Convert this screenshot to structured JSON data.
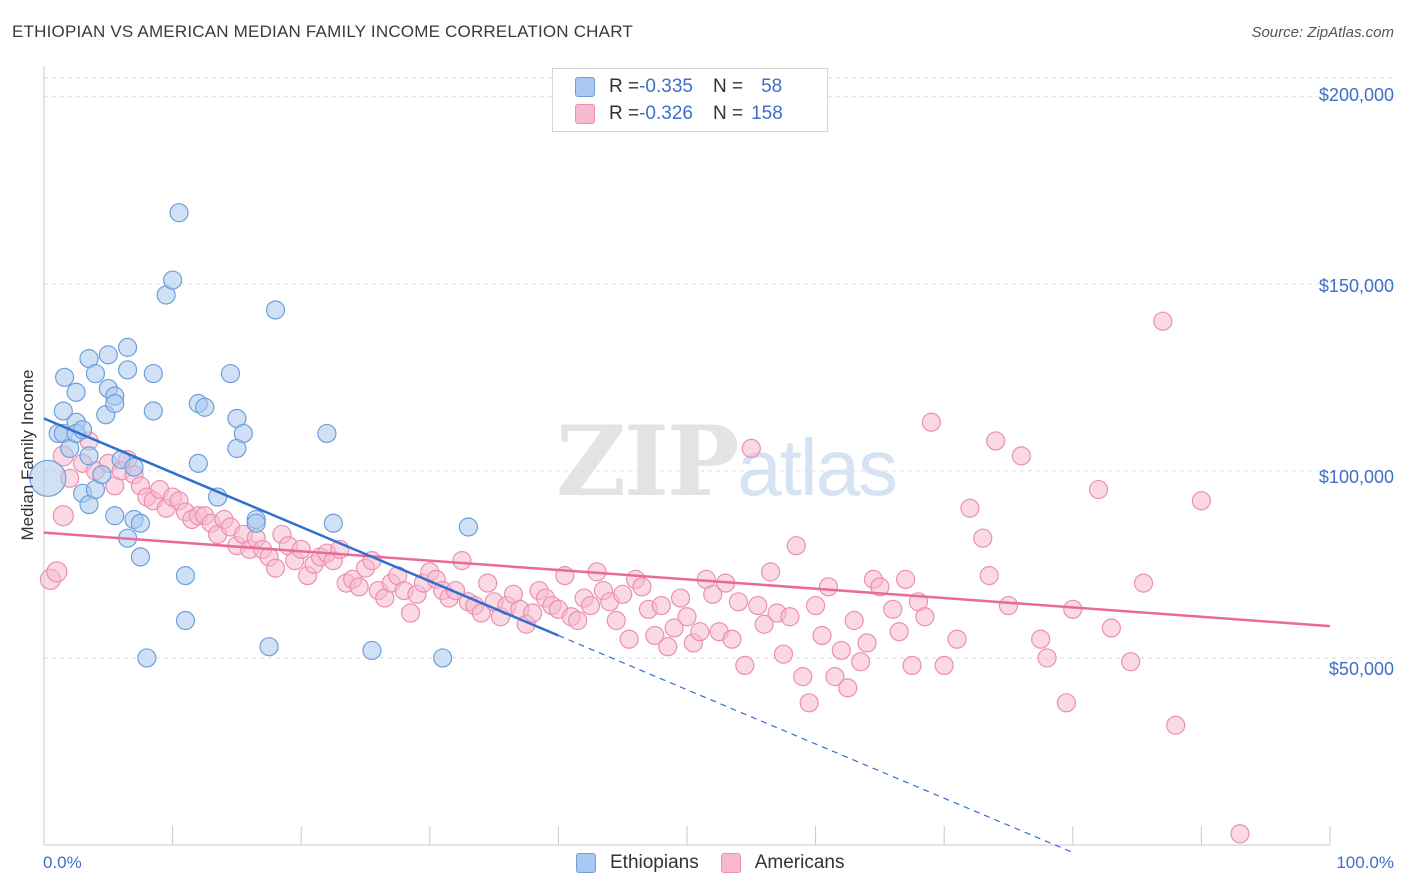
{
  "title": "ETHIOPIAN VS AMERICAN MEDIAN FAMILY INCOME CORRELATION CHART",
  "source": "Source: ZipAtlas.com",
  "watermark": {
    "zip": "ZIP",
    "atlas": "atlas"
  },
  "legend": {
    "rows": [
      {
        "r_label": "R = ",
        "r_value": "-0.335",
        "n_label": "N = ",
        "n_value": "58"
      },
      {
        "r_label": "R = ",
        "r_value": "-0.326",
        "n_label": "N = ",
        "n_value": "158"
      }
    ]
  },
  "bottom_legend": {
    "ethiopians": "Ethiopians",
    "americans": "Americans"
  },
  "colors": {
    "ethiopian_fill": "#a9c8ef",
    "ethiopian_stroke": "#6d9fdc",
    "ethiopian_line": "#2f6fd0",
    "american_fill": "#f6b9cf",
    "american_stroke": "#ec8fb0",
    "american_line": "#e8699a",
    "tick_text": "#3d6fcb"
  },
  "chart_data": {
    "type": "scatter",
    "title": "ETHIOPIAN VS AMERICAN MEDIAN FAMILY INCOME CORRELATION CHART",
    "xlabel": "",
    "ylabel": "Median Family Income",
    "x_tick_labels": [
      "0.0%",
      "100.0%"
    ],
    "y_tick_labels": [
      "$50,000",
      "$100,000",
      "$150,000",
      "$200,000"
    ],
    "y_tick_values": [
      50000,
      100000,
      150000,
      200000
    ],
    "xlim": [
      0,
      100
    ],
    "ylim": [
      0,
      205000
    ],
    "grid": true,
    "series": [
      {
        "name": "Ethiopians",
        "r": -0.335,
        "n": 58,
        "trend": {
          "x0": 0,
          "y0": 114000,
          "x1": 40,
          "y1": 56000,
          "dashed_to_x": 80
        },
        "points": [
          [
            0.3,
            98000
          ],
          [
            1.1,
            110000
          ],
          [
            1.5,
            110000
          ],
          [
            1.6,
            125000
          ],
          [
            1.5,
            116000
          ],
          [
            2.5,
            121000
          ],
          [
            2.0,
            106000
          ],
          [
            2.5,
            113000
          ],
          [
            2.5,
            110000
          ],
          [
            3.0,
            94000
          ],
          [
            3.5,
            130000
          ],
          [
            3.5,
            104000
          ],
          [
            3.5,
            91000
          ],
          [
            3.0,
            111000
          ],
          [
            4.0,
            126000
          ],
          [
            4.0,
            95000
          ],
          [
            4.8,
            115000
          ],
          [
            5.0,
            122000
          ],
          [
            5.0,
            131000
          ],
          [
            4.5,
            99000
          ],
          [
            5.5,
            120000
          ],
          [
            5.5,
            118000
          ],
          [
            5.5,
            88000
          ],
          [
            6.0,
            103000
          ],
          [
            6.5,
            127000
          ],
          [
            6.5,
            133000
          ],
          [
            6.5,
            82000
          ],
          [
            7.0,
            101000
          ],
          [
            7.0,
            87000
          ],
          [
            7.5,
            77000
          ],
          [
            7.5,
            86000
          ],
          [
            8.5,
            126000
          ],
          [
            8.5,
            116000
          ],
          [
            9.5,
            147000
          ],
          [
            10.0,
            151000
          ],
          [
            10.5,
            169000
          ],
          [
            11.0,
            72000
          ],
          [
            11.0,
            60000
          ],
          [
            8.0,
            50000
          ],
          [
            12.0,
            118000
          ],
          [
            12.5,
            117000
          ],
          [
            12.0,
            102000
          ],
          [
            13.5,
            93000
          ],
          [
            14.5,
            126000
          ],
          [
            15.0,
            114000
          ],
          [
            15.0,
            106000
          ],
          [
            15.5,
            110000
          ],
          [
            16.5,
            87000
          ],
          [
            16.5,
            86000
          ],
          [
            17.5,
            53000
          ],
          [
            18.0,
            143000
          ],
          [
            22.0,
            110000
          ],
          [
            22.5,
            86000
          ],
          [
            25.5,
            52000
          ],
          [
            31.0,
            50000
          ],
          [
            33.0,
            85000
          ]
        ]
      },
      {
        "name": "Americans",
        "r": -0.326,
        "n": 158,
        "trend": {
          "x0": 0,
          "y0": 83500,
          "x1": 100,
          "y1": 58500
        },
        "points": [
          [
            0.5,
            71000
          ],
          [
            1.0,
            73000
          ],
          [
            1.5,
            104000
          ],
          [
            1.5,
            88000
          ],
          [
            2.0,
            98000
          ],
          [
            3.0,
            102000
          ],
          [
            3.5,
            108000
          ],
          [
            4.0,
            100000
          ],
          [
            5.0,
            102000
          ],
          [
            5.5,
            96000
          ],
          [
            6.0,
            100000
          ],
          [
            6.5,
            103000
          ],
          [
            7.0,
            99000
          ],
          [
            7.5,
            96000
          ],
          [
            8.0,
            93000
          ],
          [
            8.5,
            92000
          ],
          [
            9.0,
            95000
          ],
          [
            9.5,
            90000
          ],
          [
            10.0,
            93000
          ],
          [
            10.5,
            92000
          ],
          [
            11.0,
            89000
          ],
          [
            11.5,
            87000
          ],
          [
            12.0,
            88000
          ],
          [
            12.5,
            88000
          ],
          [
            13.0,
            86000
          ],
          [
            13.5,
            83000
          ],
          [
            14.0,
            87000
          ],
          [
            14.5,
            85000
          ],
          [
            15.0,
            80000
          ],
          [
            15.5,
            83000
          ],
          [
            16.0,
            79000
          ],
          [
            16.5,
            82000
          ],
          [
            17.0,
            79000
          ],
          [
            17.5,
            77000
          ],
          [
            18.0,
            74000
          ],
          [
            18.5,
            83000
          ],
          [
            19.0,
            80000
          ],
          [
            19.5,
            76000
          ],
          [
            20.0,
            79000
          ],
          [
            20.5,
            72000
          ],
          [
            21.0,
            75000
          ],
          [
            21.5,
            77000
          ],
          [
            22.0,
            78000
          ],
          [
            22.5,
            76000
          ],
          [
            23.0,
            79000
          ],
          [
            23.5,
            70000
          ],
          [
            24.0,
            71000
          ],
          [
            24.5,
            69000
          ],
          [
            25.0,
            74000
          ],
          [
            25.5,
            76000
          ],
          [
            26.0,
            68000
          ],
          [
            26.5,
            66000
          ],
          [
            27.0,
            70000
          ],
          [
            27.5,
            72000
          ],
          [
            28.0,
            68000
          ],
          [
            28.5,
            62000
          ],
          [
            29.0,
            67000
          ],
          [
            29.5,
            70000
          ],
          [
            30.0,
            73000
          ],
          [
            30.5,
            71000
          ],
          [
            31.0,
            68000
          ],
          [
            31.5,
            66000
          ],
          [
            32.0,
            68000
          ],
          [
            32.5,
            76000
          ],
          [
            33.0,
            65000
          ],
          [
            33.5,
            64000
          ],
          [
            34.0,
            62000
          ],
          [
            34.5,
            70000
          ],
          [
            35.0,
            65000
          ],
          [
            35.5,
            61000
          ],
          [
            36.0,
            64000
          ],
          [
            36.5,
            67000
          ],
          [
            37.0,
            63000
          ],
          [
            37.5,
            59000
          ],
          [
            38.0,
            62000
          ],
          [
            38.5,
            68000
          ],
          [
            39.0,
            66000
          ],
          [
            39.5,
            64000
          ],
          [
            40.0,
            63000
          ],
          [
            40.5,
            72000
          ],
          [
            41.0,
            61000
          ],
          [
            41.5,
            60000
          ],
          [
            42.0,
            66000
          ],
          [
            42.5,
            64000
          ],
          [
            43.0,
            73000
          ],
          [
            43.5,
            68000
          ],
          [
            44.0,
            65000
          ],
          [
            44.5,
            60000
          ],
          [
            45.0,
            67000
          ],
          [
            45.5,
            55000
          ],
          [
            46.0,
            71000
          ],
          [
            46.5,
            69000
          ],
          [
            47.0,
            63000
          ],
          [
            47.5,
            56000
          ],
          [
            48.0,
            64000
          ],
          [
            48.5,
            53000
          ],
          [
            49.0,
            58000
          ],
          [
            49.5,
            66000
          ],
          [
            50.0,
            61000
          ],
          [
            50.5,
            54000
          ],
          [
            51.0,
            57000
          ],
          [
            51.5,
            71000
          ],
          [
            52.0,
            67000
          ],
          [
            52.5,
            57000
          ],
          [
            53.0,
            70000
          ],
          [
            53.5,
            55000
          ],
          [
            54.0,
            65000
          ],
          [
            54.5,
            48000
          ],
          [
            55.0,
            106000
          ],
          [
            55.5,
            64000
          ],
          [
            56.0,
            59000
          ],
          [
            56.5,
            73000
          ],
          [
            57.0,
            62000
          ],
          [
            57.5,
            51000
          ],
          [
            58.0,
            61000
          ],
          [
            58.5,
            80000
          ],
          [
            59.0,
            45000
          ],
          [
            59.5,
            38000
          ],
          [
            60.0,
            64000
          ],
          [
            60.5,
            56000
          ],
          [
            61.0,
            69000
          ],
          [
            61.5,
            45000
          ],
          [
            62.0,
            52000
          ],
          [
            62.5,
            42000
          ],
          [
            63.0,
            60000
          ],
          [
            63.5,
            49000
          ],
          [
            64.0,
            54000
          ],
          [
            64.5,
            71000
          ],
          [
            65.0,
            69000
          ],
          [
            66.0,
            63000
          ],
          [
            66.5,
            57000
          ],
          [
            67.0,
            71000
          ],
          [
            67.5,
            48000
          ],
          [
            68.0,
            65000
          ],
          [
            68.5,
            61000
          ],
          [
            69.0,
            113000
          ],
          [
            70.0,
            48000
          ],
          [
            71.0,
            55000
          ],
          [
            72.0,
            90000
          ],
          [
            73.0,
            82000
          ],
          [
            73.5,
            72000
          ],
          [
            74.0,
            108000
          ],
          [
            75.0,
            64000
          ],
          [
            76.0,
            104000
          ],
          [
            77.5,
            55000
          ],
          [
            78.0,
            50000
          ],
          [
            79.5,
            38000
          ],
          [
            80.0,
            63000
          ],
          [
            82.0,
            95000
          ],
          [
            83.0,
            58000
          ],
          [
            84.5,
            49000
          ],
          [
            85.5,
            70000
          ],
          [
            87.0,
            140000
          ],
          [
            88.0,
            32000
          ],
          [
            90.0,
            92000
          ],
          [
            93.0,
            3000
          ]
        ]
      }
    ]
  }
}
